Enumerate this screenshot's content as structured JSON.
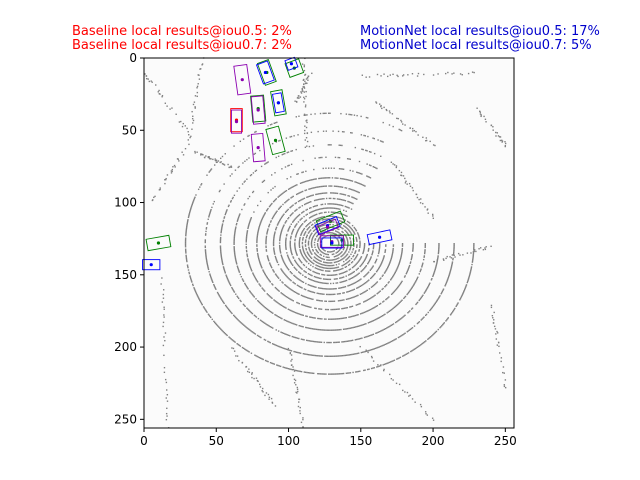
{
  "chart_data": {
    "type": "scatter",
    "title": "",
    "xlabel": "",
    "ylabel": "",
    "xlim": [
      0,
      256
    ],
    "ylim": [
      256,
      0
    ],
    "xticks": [
      0,
      50,
      100,
      150,
      200,
      250
    ],
    "yticks": [
      0,
      50,
      100,
      150,
      200,
      250
    ],
    "grid": false,
    "annotations": {
      "baseline_iou05": "Baseline local results@iou0.5: 2%",
      "baseline_iou07": "Baseline local results@iou0.7: 2%",
      "motionnet_iou05": "MotionNet local results@iou0.5: 17%",
      "motionnet_iou07": "MotionNet local results@iou0.7: 5%"
    },
    "colors": {
      "baseline_text": "#ff0000",
      "motionnet_text": "#0000cc",
      "points": "#808080",
      "green_box": "#008000",
      "blue_box": "#0000ff",
      "purple_box": "#8b00b0",
      "red_box": "#ff0000"
    },
    "boxes": [
      {
        "color": "green",
        "cx": 104,
        "cy": 7,
        "w": 10,
        "h": 10,
        "angle": -20
      },
      {
        "color": "blue",
        "cx": 102,
        "cy": 4,
        "w": 7,
        "h": 7,
        "angle": -20
      },
      {
        "color": "green",
        "cx": 85,
        "cy": 10,
        "w": 8,
        "h": 16,
        "angle": -20
      },
      {
        "color": "blue",
        "cx": 84,
        "cy": 10,
        "w": 8,
        "h": 14,
        "angle": -20
      },
      {
        "color": "purple",
        "cx": 68,
        "cy": 15,
        "w": 9,
        "h": 20,
        "angle": -8
      },
      {
        "color": "green",
        "cx": 93,
        "cy": 31,
        "w": 8,
        "h": 17,
        "angle": -10
      },
      {
        "color": "blue",
        "cx": 93,
        "cy": 31,
        "w": 6,
        "h": 13,
        "angle": -10
      },
      {
        "color": "green",
        "cx": 79,
        "cy": 35,
        "w": 9,
        "h": 18,
        "angle": -5
      },
      {
        "color": "purple",
        "cx": 79,
        "cy": 36,
        "w": 8,
        "h": 19,
        "angle": -5
      },
      {
        "color": "red",
        "cx": 64,
        "cy": 43,
        "w": 8,
        "h": 16,
        "angle": 0
      },
      {
        "color": "purple",
        "cx": 64,
        "cy": 44,
        "w": 7,
        "h": 16,
        "angle": 0
      },
      {
        "color": "green",
        "cx": 91,
        "cy": 57,
        "w": 9,
        "h": 18,
        "angle": -15
      },
      {
        "color": "purple",
        "cx": 79,
        "cy": 62,
        "w": 8,
        "h": 19,
        "angle": -5
      },
      {
        "color": "green",
        "cx": 129,
        "cy": 113,
        "w": 18,
        "h": 8,
        "angle": -22
      },
      {
        "color": "blue",
        "cx": 127,
        "cy": 116,
        "w": 16,
        "h": 7,
        "angle": -22
      },
      {
        "color": "purple",
        "cx": 127,
        "cy": 117,
        "w": 14,
        "h": 6,
        "angle": -22
      },
      {
        "color": "green",
        "cx": 137,
        "cy": 126,
        "w": 16,
        "h": 7,
        "angle": 0
      },
      {
        "color": "purple",
        "cx": 130,
        "cy": 127,
        "w": 16,
        "h": 8,
        "angle": 0
      },
      {
        "color": "blue",
        "cx": 130,
        "cy": 128,
        "w": 14,
        "h": 7,
        "angle": 0
      },
      {
        "color": "blue",
        "cx": 163,
        "cy": 124,
        "w": 16,
        "h": 7,
        "angle": -12
      },
      {
        "color": "green",
        "cx": 10,
        "cy": 128,
        "w": 16,
        "h": 8,
        "angle": -10
      },
      {
        "color": "blue",
        "cx": 5,
        "cy": 143,
        "w": 12,
        "h": 7,
        "angle": 0
      }
    ]
  }
}
